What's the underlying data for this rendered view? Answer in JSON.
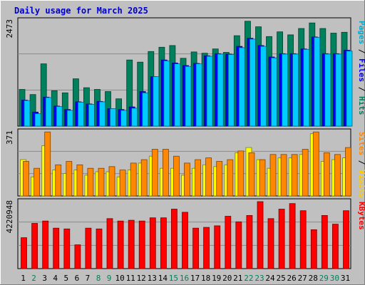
{
  "chart_data": {
    "type": "bar",
    "title": "Daily usage for March 2025",
    "categories": [
      "1",
      "2",
      "3",
      "4",
      "5",
      "6",
      "7",
      "8",
      "9",
      "10",
      "11",
      "12",
      "13",
      "14",
      "15",
      "16",
      "17",
      "18",
      "19",
      "20",
      "21",
      "22",
      "23",
      "24",
      "25",
      "26",
      "27",
      "28",
      "29",
      "30",
      "31"
    ],
    "weekend_days": [
      "2",
      "8",
      "9",
      "15",
      "16",
      "22",
      "23",
      "29",
      "30"
    ],
    "panels": [
      {
        "id": "top",
        "max_label": "2473",
        "ymax": 2473,
        "right_label_parts": [
          {
            "text": "Pages",
            "color": "#00aacc"
          },
          {
            "text": " / ",
            "color": "#000000"
          },
          {
            "text": "Files",
            "color": "#0000ff"
          },
          {
            "text": " / ",
            "color": "#000000"
          },
          {
            "text": "Hits",
            "color": "#00805c"
          }
        ],
        "series": [
          {
            "name": "Hits",
            "color": "#00805c",
            "values": [
              860,
              740,
              1460,
              830,
              780,
              1110,
              900,
              860,
              810,
              640,
              1550,
              1500,
              1750,
              1850,
              1890,
              1590,
              1740,
              1710,
              1810,
              1730,
              2120,
              2460,
              2330,
              2100,
              2210,
              2140,
              2290,
              2420,
              2290,
              2180,
              2200
            ]
          },
          {
            "name": "Files",
            "color": "#0000ff",
            "values": [
              610,
              330,
              680,
              470,
              390,
              570,
              520,
              580,
              410,
              390,
              450,
              810,
              1160,
              1550,
              1480,
              1420,
              1470,
              1650,
              1700,
              1690,
              1870,
              2060,
              1890,
              1620,
              1700,
              1700,
              1810,
              2090,
              1700,
              1700,
              1780
            ]
          },
          {
            "name": "Pages",
            "color": "#00ccff",
            "values": [
              600,
              290,
              670,
              460,
              370,
              560,
              510,
              570,
              410,
              370,
              420,
              780,
              1160,
              1530,
              1460,
              1400,
              1460,
              1640,
              1690,
              1680,
              1840,
              2040,
              1870,
              1600,
              1690,
              1690,
              1800,
              2080,
              1690,
              1690,
              1760
            ]
          }
        ]
      },
      {
        "id": "middle",
        "max_label": "371",
        "ymax": 371,
        "right_label_parts": [
          {
            "text": "Sites",
            "color": "#ff8800"
          },
          {
            "text": " / ",
            "color": "#000000"
          },
          {
            "text": "Visits",
            "color": "#ffcc00"
          }
        ],
        "series": [
          {
            "name": "Visits",
            "color": "#ffff00",
            "values": [
              210,
              110,
              290,
              150,
              130,
              150,
              120,
              140,
              140,
              110,
              150,
              190,
              230,
              160,
              160,
              120,
              160,
              180,
              170,
              180,
              250,
              280,
              210,
              160,
              220,
              220,
              240,
              360,
              200,
              210,
              220
            ]
          },
          {
            "name": "Sites",
            "color": "#ff8800",
            "values": [
              200,
              160,
              370,
              180,
              200,
              180,
              160,
              160,
              170,
              150,
              190,
              210,
              270,
              270,
              230,
              190,
              210,
              220,
              200,
              210,
              260,
              250,
              210,
              240,
              240,
              240,
              270,
              370,
              250,
              240,
              280
            ]
          }
        ]
      },
      {
        "id": "bottom",
        "max_label": "4220948",
        "ymax": 4220948,
        "right_label_parts": [
          {
            "text": "KBytes",
            "color": "#ff0000"
          }
        ],
        "series": [
          {
            "name": "KBytes",
            "color": "#ff0000",
            "values": [
              1950000,
              2850000,
              3000000,
              2550000,
              2500000,
              1500000,
              2550000,
              2500000,
              3150000,
              3000000,
              3050000,
              3000000,
              3200000,
              3200000,
              3750000,
              3550000,
              2550000,
              2600000,
              2700000,
              3300000,
              2950000,
              3350000,
              4220948,
              3150000,
              3750000,
              4100000,
              3650000,
              2450000,
              3350000,
              2800000,
              3650000
            ]
          }
        ]
      }
    ]
  }
}
